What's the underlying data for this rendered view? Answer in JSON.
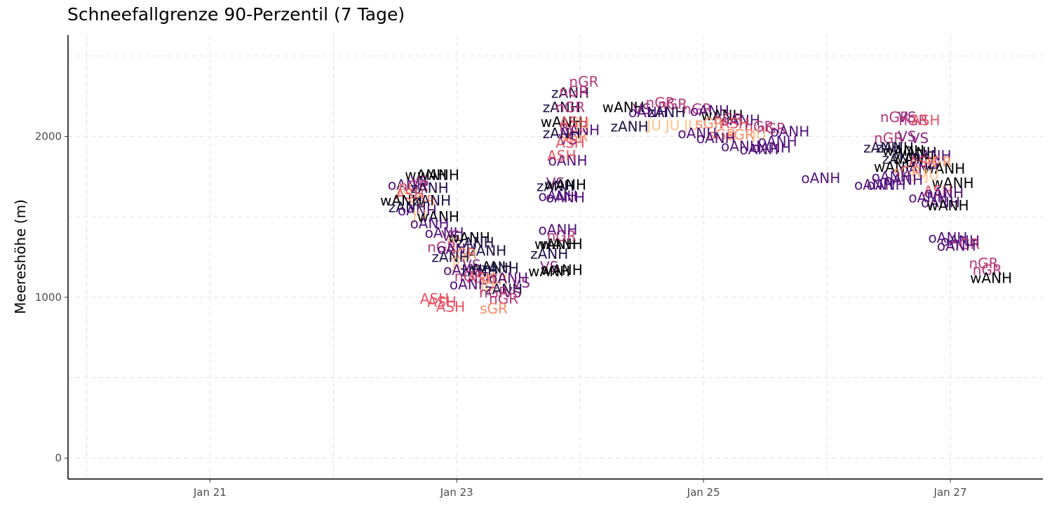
{
  "chart_data": {
    "type": "scatter",
    "title": "Schneefallgrenze 90-Perzentil (7 Tage)",
    "xlabel": "",
    "ylabel": "Meereshöhe (m)",
    "x_ticks": [
      "Jan 21",
      "Jan 23",
      "Jan 25",
      "Jan 27"
    ],
    "y_ticks": [
      0,
      1000,
      2000
    ],
    "xlim": [
      19.85,
      27.75
    ],
    "ylim": [
      -130,
      2630
    ],
    "grid": true,
    "legend": "none",
    "colors": {
      "wANH": "#000004",
      "zANH": "#1d1147",
      "oANH": "#51127c",
      "VS": "#832681",
      "nGR": "#b73779",
      "ASH": "#e75263",
      "sGR": "#fc8961",
      "JU": "#fec287"
    },
    "points": [
      {
        "x": 22.75,
        "y": 1760,
        "label": "wANH"
      },
      {
        "x": 22.85,
        "y": 1760,
        "label": "wANH"
      },
      {
        "x": 22.7,
        "y": 1720,
        "label": "VS"
      },
      {
        "x": 22.6,
        "y": 1700,
        "label": "oANH"
      },
      {
        "x": 22.65,
        "y": 1690,
        "label": "nGR"
      },
      {
        "x": 22.58,
        "y": 1670,
        "label": "JU"
      },
      {
        "x": 22.78,
        "y": 1680,
        "label": "zANH"
      },
      {
        "x": 22.62,
        "y": 1640,
        "label": "ASH"
      },
      {
        "x": 22.55,
        "y": 1600,
        "label": "wANH"
      },
      {
        "x": 22.72,
        "y": 1600,
        "label": "sGR"
      },
      {
        "x": 22.8,
        "y": 1600,
        "label": "zANH"
      },
      {
        "x": 22.6,
        "y": 1560,
        "label": "zANH"
      },
      {
        "x": 22.68,
        "y": 1540,
        "label": "oANH"
      },
      {
        "x": 22.7,
        "y": 1510,
        "label": "JU"
      },
      {
        "x": 22.85,
        "y": 1500,
        "label": "wANH"
      },
      {
        "x": 22.78,
        "y": 1460,
        "label": "oANH"
      },
      {
        "x": 22.9,
        "y": 1400,
        "label": "oANH"
      },
      {
        "x": 22.95,
        "y": 1380,
        "label": "VS"
      },
      {
        "x": 23.1,
        "y": 1370,
        "label": "wANH"
      },
      {
        "x": 22.98,
        "y": 1340,
        "label": "JU"
      },
      {
        "x": 23.15,
        "y": 1340,
        "label": "zANH"
      },
      {
        "x": 22.88,
        "y": 1310,
        "label": "nGR"
      },
      {
        "x": 23.0,
        "y": 1300,
        "label": "oANH"
      },
      {
        "x": 23.25,
        "y": 1290,
        "label": "zANH"
      },
      {
        "x": 23.05,
        "y": 1270,
        "label": "sGR"
      },
      {
        "x": 22.95,
        "y": 1250,
        "label": "zANH"
      },
      {
        "x": 23.02,
        "y": 1210,
        "label": "JU"
      },
      {
        "x": 23.12,
        "y": 1200,
        "label": "VS"
      },
      {
        "x": 23.28,
        "y": 1190,
        "label": "wANH"
      },
      {
        "x": 23.05,
        "y": 1170,
        "label": "oANH"
      },
      {
        "x": 23.18,
        "y": 1160,
        "label": "zANH"
      },
      {
        "x": 23.35,
        "y": 1180,
        "label": "zANH"
      },
      {
        "x": 23.1,
        "y": 1130,
        "label": "nGR"
      },
      {
        "x": 23.2,
        "y": 1120,
        "label": "ASH"
      },
      {
        "x": 23.3,
        "y": 1110,
        "label": "sGR"
      },
      {
        "x": 23.42,
        "y": 1120,
        "label": "oANH"
      },
      {
        "x": 23.1,
        "y": 1080,
        "label": "oANH"
      },
      {
        "x": 23.25,
        "y": 1070,
        "label": "JU"
      },
      {
        "x": 23.52,
        "y": 1090,
        "label": "VS"
      },
      {
        "x": 23.38,
        "y": 1050,
        "label": "zANH"
      },
      {
        "x": 23.3,
        "y": 1030,
        "label": "nGR"
      },
      {
        "x": 23.45,
        "y": 1030,
        "label": "VS"
      },
      {
        "x": 23.38,
        "y": 990,
        "label": "nGR"
      },
      {
        "x": 22.82,
        "y": 990,
        "label": "ASH"
      },
      {
        "x": 22.88,
        "y": 970,
        "label": "ASH"
      },
      {
        "x": 22.95,
        "y": 940,
        "label": "ASH"
      },
      {
        "x": 23.3,
        "y": 930,
        "label": "sGR"
      },
      {
        "x": 23.75,
        "y": 1190,
        "label": "VS"
      },
      {
        "x": 23.75,
        "y": 1160,
        "label": "wANH"
      },
      {
        "x": 23.85,
        "y": 1170,
        "label": "wANH"
      },
      {
        "x": 23.75,
        "y": 1270,
        "label": "zANH"
      },
      {
        "x": 23.85,
        "y": 1330,
        "label": "wANH"
      },
      {
        "x": 23.8,
        "y": 1330,
        "label": "wANH"
      },
      {
        "x": 23.85,
        "y": 1380,
        "label": "nGR"
      },
      {
        "x": 23.82,
        "y": 1420,
        "label": "oANH"
      },
      {
        "x": 23.82,
        "y": 1630,
        "label": "oANH"
      },
      {
        "x": 23.88,
        "y": 1620,
        "label": "oANH"
      },
      {
        "x": 23.8,
        "y": 1710,
        "label": "VS"
      },
      {
        "x": 23.8,
        "y": 1690,
        "label": "zANH"
      },
      {
        "x": 23.88,
        "y": 1700,
        "label": "wANH"
      },
      {
        "x": 23.9,
        "y": 1850,
        "label": "oANH"
      },
      {
        "x": 23.85,
        "y": 1880,
        "label": "ASH"
      },
      {
        "x": 23.92,
        "y": 1960,
        "label": "ASH"
      },
      {
        "x": 23.9,
        "y": 1980,
        "label": "VS"
      },
      {
        "x": 23.95,
        "y": 2000,
        "label": "sGR"
      },
      {
        "x": 23.85,
        "y": 2020,
        "label": "zANH"
      },
      {
        "x": 24.0,
        "y": 2040,
        "label": "oANH"
      },
      {
        "x": 23.95,
        "y": 2060,
        "label": "nGR"
      },
      {
        "x": 24.02,
        "y": 2080,
        "label": "JU"
      },
      {
        "x": 23.85,
        "y": 2090,
        "label": "wANH"
      },
      {
        "x": 23.95,
        "y": 2090,
        "label": "ASH"
      },
      {
        "x": 23.85,
        "y": 2180,
        "label": "zANH"
      },
      {
        "x": 23.92,
        "y": 2180,
        "label": "nGR"
      },
      {
        "x": 23.92,
        "y": 2270,
        "label": "zANH"
      },
      {
        "x": 23.95,
        "y": 2280,
        "label": "nGR"
      },
      {
        "x": 24.03,
        "y": 2340,
        "label": "nGR"
      },
      {
        "x": 24.35,
        "y": 2180,
        "label": "wANH"
      },
      {
        "x": 24.5,
        "y": 2170,
        "label": "VS"
      },
      {
        "x": 24.55,
        "y": 2150,
        "label": "oANH"
      },
      {
        "x": 24.65,
        "y": 2210,
        "label": "nGR"
      },
      {
        "x": 24.75,
        "y": 2200,
        "label": "nGR"
      },
      {
        "x": 24.7,
        "y": 2150,
        "label": "zANH"
      },
      {
        "x": 24.95,
        "y": 2170,
        "label": "nGR"
      },
      {
        "x": 25.05,
        "y": 2160,
        "label": "oANH"
      },
      {
        "x": 25.15,
        "y": 2130,
        "label": "wANH"
      },
      {
        "x": 25.2,
        "y": 2110,
        "label": "nGR"
      },
      {
        "x": 25.3,
        "y": 2100,
        "label": "oANH"
      },
      {
        "x": 24.4,
        "y": 2060,
        "label": "zANH"
      },
      {
        "x": 24.6,
        "y": 2070,
        "label": "JU"
      },
      {
        "x": 24.75,
        "y": 2070,
        "label": "JU"
      },
      {
        "x": 24.9,
        "y": 2070,
        "label": "JU"
      },
      {
        "x": 25.05,
        "y": 2080,
        "label": "sGR"
      },
      {
        "x": 25.25,
        "y": 2080,
        "label": "ASH"
      },
      {
        "x": 25.45,
        "y": 2060,
        "label": "nGR"
      },
      {
        "x": 25.55,
        "y": 2050,
        "label": "nGR"
      },
      {
        "x": 25.7,
        "y": 2030,
        "label": "oANH"
      },
      {
        "x": 24.95,
        "y": 2020,
        "label": "oANH"
      },
      {
        "x": 25.15,
        "y": 2010,
        "label": "sGR"
      },
      {
        "x": 25.3,
        "y": 2010,
        "label": "sGR"
      },
      {
        "x": 25.45,
        "y": 2010,
        "label": "JU"
      },
      {
        "x": 25.1,
        "y": 1990,
        "label": "oANH"
      },
      {
        "x": 25.6,
        "y": 1970,
        "label": "oANH"
      },
      {
        "x": 25.3,
        "y": 1940,
        "label": "oANH"
      },
      {
        "x": 25.45,
        "y": 1920,
        "label": "oANH"
      },
      {
        "x": 25.55,
        "y": 1930,
        "label": "oANH"
      },
      {
        "x": 25.95,
        "y": 1740,
        "label": "oANH"
      },
      {
        "x": 26.38,
        "y": 1700,
        "label": "oANH"
      },
      {
        "x": 26.55,
        "y": 2120,
        "label": "nGR"
      },
      {
        "x": 26.65,
        "y": 2120,
        "label": "VS"
      },
      {
        "x": 26.7,
        "y": 2100,
        "label": "nGR"
      },
      {
        "x": 26.8,
        "y": 2100,
        "label": "ASH"
      },
      {
        "x": 26.5,
        "y": 1990,
        "label": "nGR"
      },
      {
        "x": 26.65,
        "y": 2000,
        "label": "VS"
      },
      {
        "x": 26.75,
        "y": 1990,
        "label": "VS"
      },
      {
        "x": 26.45,
        "y": 1930,
        "label": "zANH"
      },
      {
        "x": 26.55,
        "y": 1930,
        "label": "zANH"
      },
      {
        "x": 26.62,
        "y": 1910,
        "label": "wANH"
      },
      {
        "x": 26.72,
        "y": 1900,
        "label": "wANH"
      },
      {
        "x": 26.85,
        "y": 1880,
        "label": "oANH"
      },
      {
        "x": 26.6,
        "y": 1860,
        "label": "zANH"
      },
      {
        "x": 26.7,
        "y": 1860,
        "label": "wANH"
      },
      {
        "x": 26.78,
        "y": 1840,
        "label": "ASH"
      },
      {
        "x": 26.9,
        "y": 1840,
        "label": "sGR"
      },
      {
        "x": 26.55,
        "y": 1810,
        "label": "wANH"
      },
      {
        "x": 26.75,
        "y": 1800,
        "label": "oANH"
      },
      {
        "x": 26.95,
        "y": 1800,
        "label": "wANH"
      },
      {
        "x": 26.65,
        "y": 1780,
        "label": "sGR"
      },
      {
        "x": 26.75,
        "y": 1770,
        "label": "JU"
      },
      {
        "x": 26.85,
        "y": 1760,
        "label": "JU"
      },
      {
        "x": 26.52,
        "y": 1750,
        "label": "oANH"
      },
      {
        "x": 26.62,
        "y": 1730,
        "label": "oANH"
      },
      {
        "x": 26.48,
        "y": 1700,
        "label": "oANH"
      },
      {
        "x": 27.02,
        "y": 1710,
        "label": "wANH"
      },
      {
        "x": 26.9,
        "y": 1660,
        "label": "ASH"
      },
      {
        "x": 26.95,
        "y": 1650,
        "label": "oANH"
      },
      {
        "x": 26.82,
        "y": 1620,
        "label": "oANH"
      },
      {
        "x": 26.92,
        "y": 1590,
        "label": "oANH"
      },
      {
        "x": 26.98,
        "y": 1570,
        "label": "wANH"
      },
      {
        "x": 26.98,
        "y": 1370,
        "label": "oANH"
      },
      {
        "x": 27.08,
        "y": 1350,
        "label": "oANH"
      },
      {
        "x": 27.12,
        "y": 1330,
        "label": "nGR"
      },
      {
        "x": 27.05,
        "y": 1320,
        "label": "oANH"
      },
      {
        "x": 27.27,
        "y": 1210,
        "label": "nGR"
      },
      {
        "x": 27.3,
        "y": 1170,
        "label": "nGR"
      },
      {
        "x": 27.33,
        "y": 1120,
        "label": "wANH"
      }
    ]
  }
}
